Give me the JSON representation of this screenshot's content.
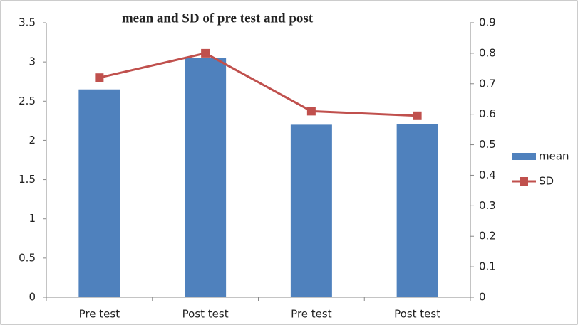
{
  "chart_data": {
    "type": "bar",
    "title": "mean and SD of pre test and post",
    "categories": [
      "Pre test",
      "Post test",
      "Pre test",
      "Post test"
    ],
    "series": [
      {
        "name": "mean",
        "color": "#4f81bd",
        "values": [
          2.65,
          3.05,
          2.2,
          2.21
        ]
      },
      {
        "name": "SD",
        "type": "line",
        "axis": "y2",
        "color": "#c0504d",
        "values": [
          0.72,
          0.8,
          0.61,
          0.595
        ]
      }
    ],
    "ylim": [
      0,
      3.5
    ],
    "yticks": [
      0,
      0.5,
      1,
      1.5,
      2,
      2.5,
      3,
      3.5
    ],
    "y2lim": [
      0,
      0.9
    ],
    "y2ticks": [
      0,
      0.1,
      0.2,
      0.3,
      0.4,
      0.5,
      0.6,
      0.7,
      0.8,
      0.9
    ],
    "grid": false,
    "legend": "right"
  }
}
